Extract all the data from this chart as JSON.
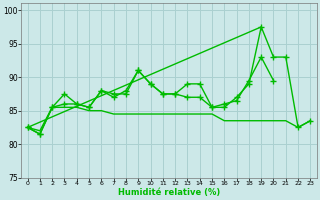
{
  "xlabel": "Humidité relative (%)",
  "bg_color": "#cce8e8",
  "grid_color": "#aad0d0",
  "line_color": "#00bb00",
  "x": [
    0,
    1,
    2,
    3,
    4,
    5,
    6,
    7,
    8,
    9,
    10,
    11,
    12,
    13,
    14,
    15,
    16,
    17,
    18,
    19,
    20,
    21,
    22,
    23
  ],
  "line1": [
    82.5,
    81.5,
    85.5,
    87.5,
    86,
    85.5,
    88,
    87.5,
    87.5,
    91,
    89,
    87.5,
    87.5,
    89,
    89,
    85.5,
    85.5,
    87,
    89,
    97.5,
    93,
    93,
    82.5,
    83.5
  ],
  "line2": [
    82.5,
    81.5,
    85.5,
    86,
    86,
    85.5,
    88,
    87,
    88,
    91,
    89,
    87.5,
    87.5,
    87,
    87,
    85.5,
    86,
    86.5,
    89.5,
    93,
    89.5,
    null,
    null,
    null
  ],
  "line3": [
    82.5,
    82,
    85.5,
    85.5,
    85.5,
    85,
    85,
    84.5,
    84.5,
    84.5,
    84.5,
    84.5,
    84.5,
    84.5,
    84.5,
    84.5,
    83.5,
    83.5,
    83.5,
    83.5,
    83.5,
    83.5,
    82.5,
    83.5
  ],
  "trend_x": [
    0,
    19
  ],
  "trend_y": [
    82.5,
    97.5
  ],
  "ylim": [
    75,
    101
  ],
  "xlim": [
    -0.5,
    23.5
  ],
  "yticks": [
    75,
    80,
    85,
    90,
    95,
    100
  ],
  "xticks": [
    0,
    1,
    2,
    3,
    4,
    5,
    6,
    7,
    8,
    9,
    10,
    11,
    12,
    13,
    14,
    15,
    16,
    17,
    18,
    19,
    20,
    21,
    22,
    23
  ]
}
